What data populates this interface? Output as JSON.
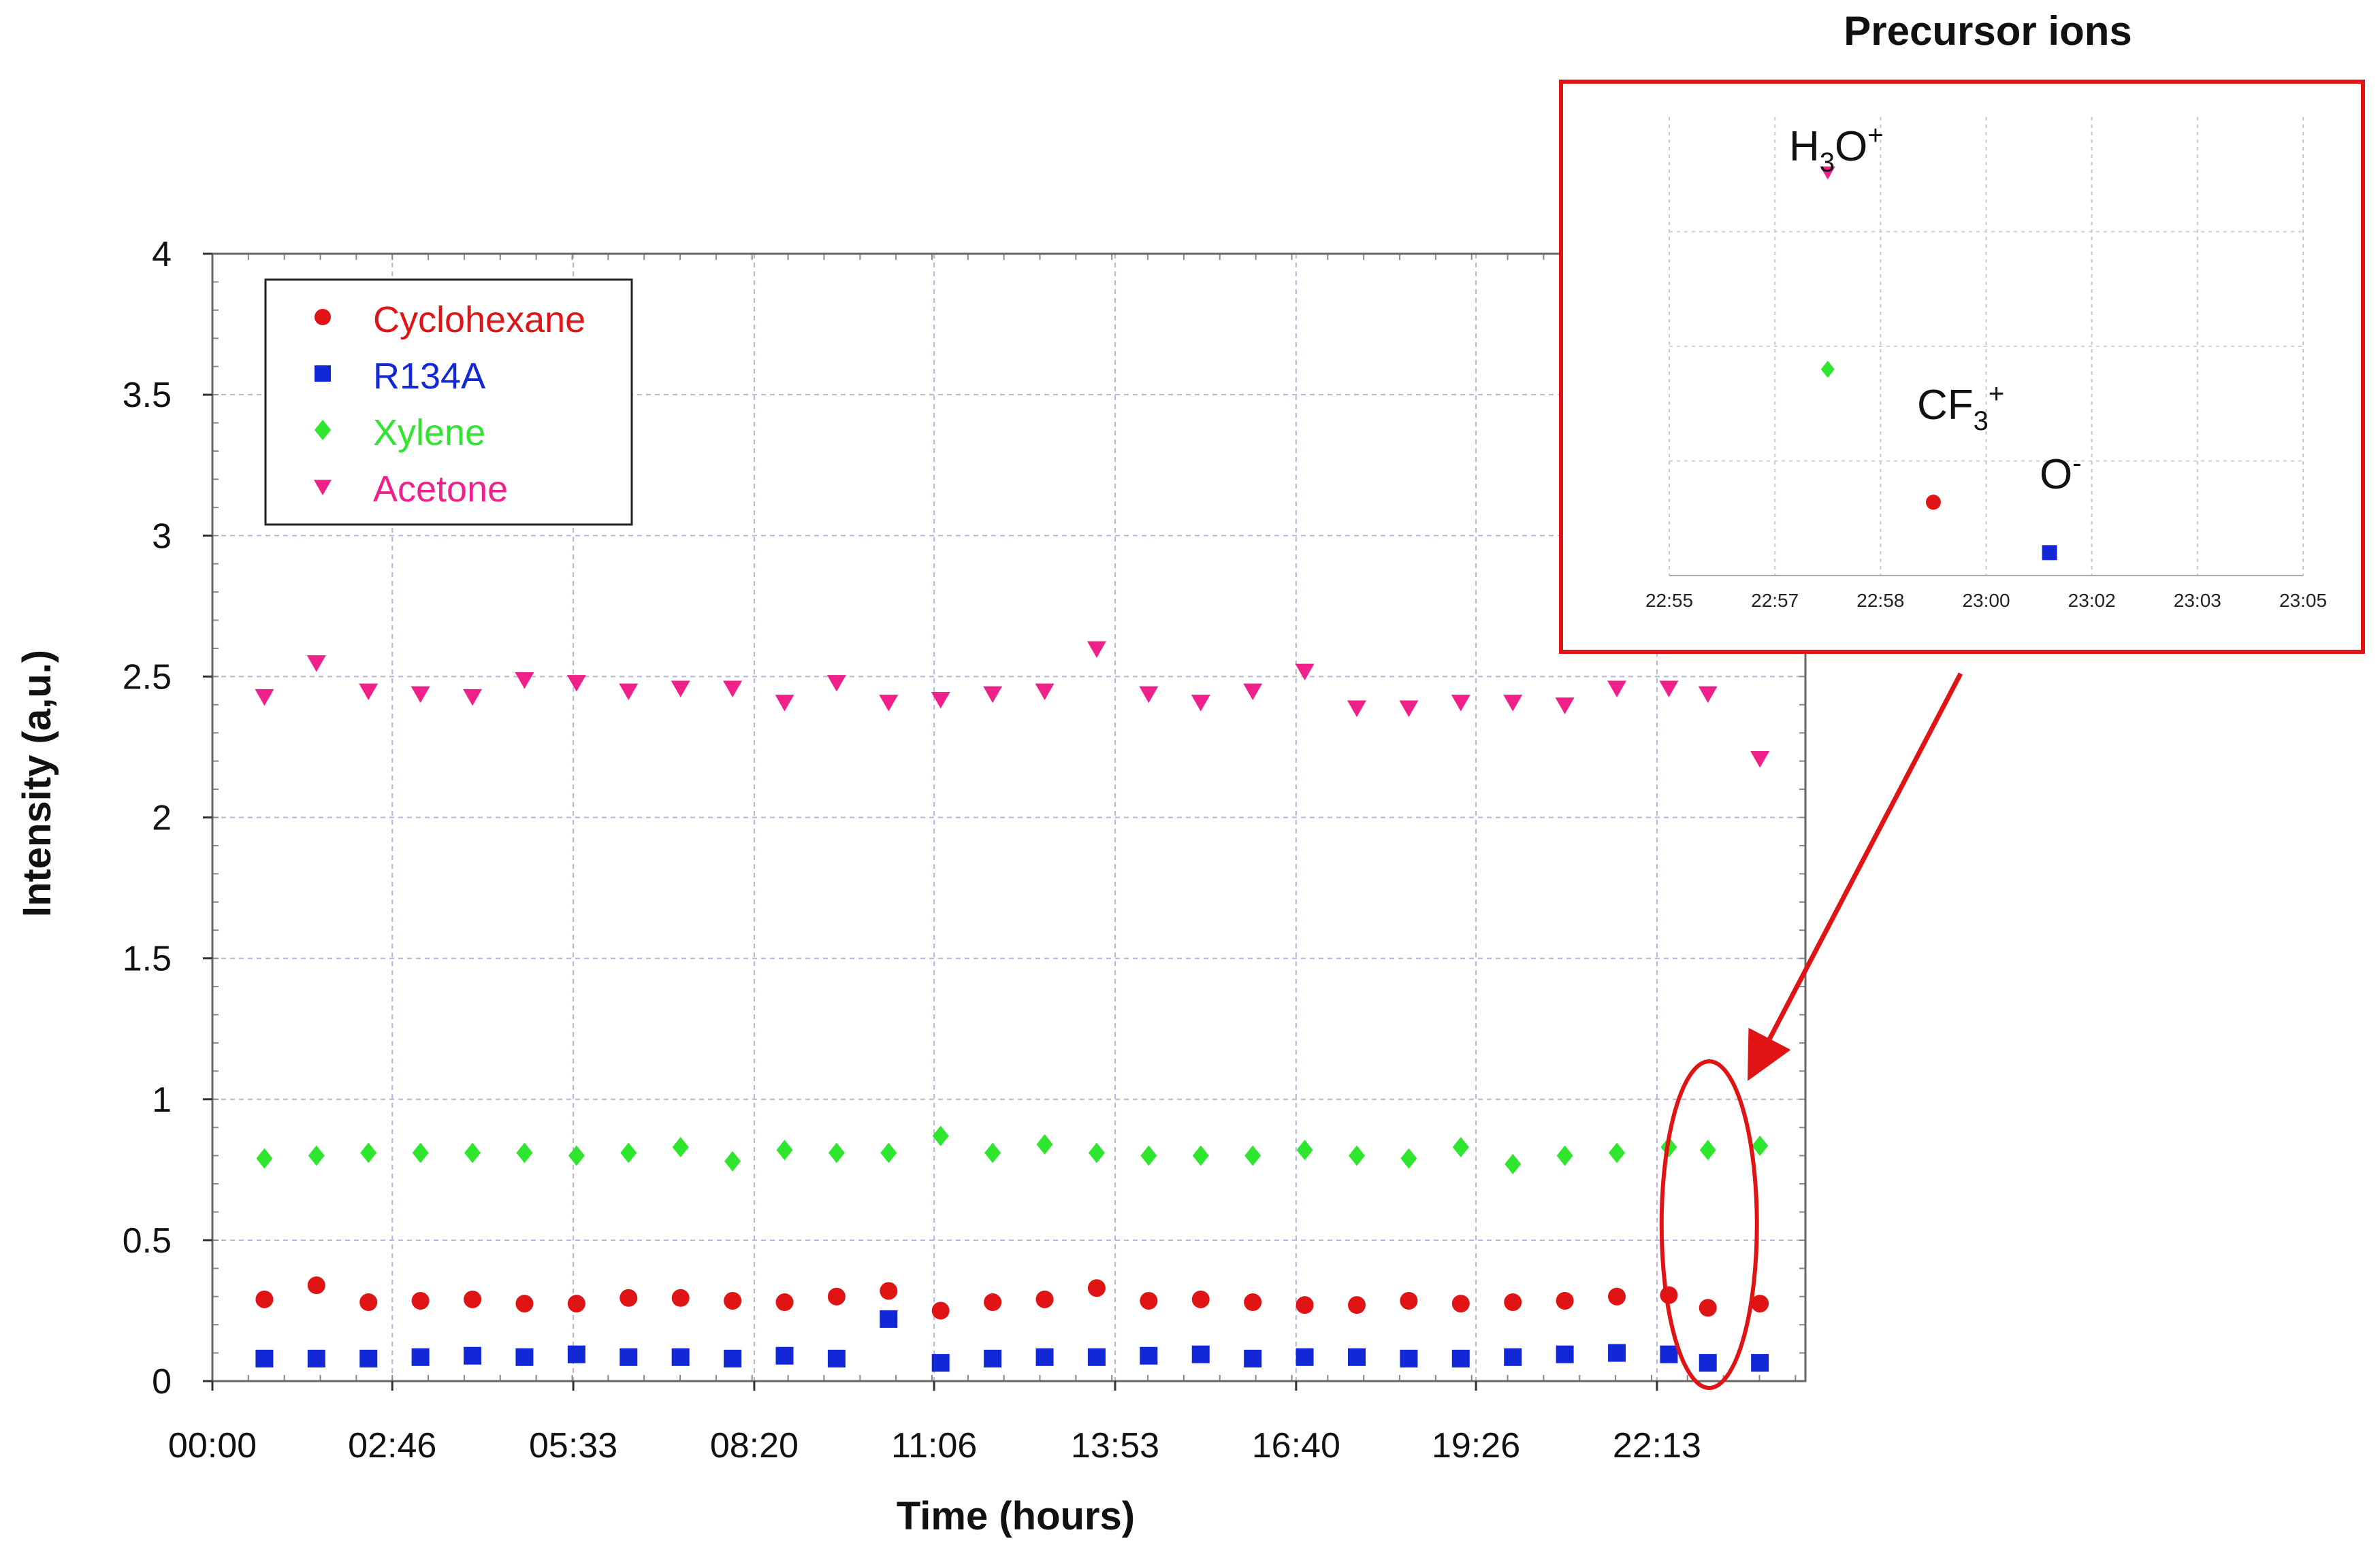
{
  "chart_data": {
    "type": "scatter",
    "xlabel": "Time (hours)",
    "ylabel": "Intensity (a,u.)",
    "xlim": [
      "00:00",
      "24:30"
    ],
    "ylim": [
      0,
      4
    ],
    "x_ticks": [
      "00:00",
      "02:46",
      "05:33",
      "08:20",
      "11:06",
      "13:53",
      "16:40",
      "19:26",
      "22:13"
    ],
    "y_ticks": [
      "0",
      "0.5",
      "1",
      "1.5",
      "2",
      "2.5",
      "3",
      "3.5",
      "4"
    ],
    "grid": true,
    "legend_position": "top-left",
    "x": [
      "00:48",
      "01:36",
      "02:24",
      "03:12",
      "04:00",
      "04:48",
      "05:36",
      "06:24",
      "07:12",
      "08:00",
      "08:48",
      "09:36",
      "10:24",
      "11:12",
      "12:00",
      "12:48",
      "13:36",
      "14:24",
      "15:12",
      "16:00",
      "16:48",
      "17:36",
      "18:24",
      "19:12",
      "20:00",
      "20:48",
      "21:36",
      "22:24",
      "23:00",
      "23:48"
    ],
    "series": [
      {
        "name": "Cyclohexane",
        "color": "#e01414",
        "marker": "circle",
        "values": [
          0.29,
          0.34,
          0.28,
          0.285,
          0.29,
          0.275,
          0.275,
          0.295,
          0.295,
          0.285,
          0.28,
          0.3,
          0.32,
          0.25,
          0.28,
          0.29,
          0.33,
          0.285,
          0.29,
          0.28,
          0.27,
          0.27,
          0.285,
          0.275,
          0.28,
          0.285,
          0.3,
          0.305,
          0.26,
          0.275
        ]
      },
      {
        "name": "R134A",
        "color": "#1228d6",
        "marker": "square",
        "values": [
          0.08,
          0.08,
          0.08,
          0.085,
          0.09,
          0.085,
          0.095,
          0.085,
          0.085,
          0.08,
          0.09,
          0.08,
          0.22,
          0.065,
          0.08,
          0.085,
          0.085,
          0.09,
          0.095,
          0.08,
          0.085,
          0.085,
          0.08,
          0.08,
          0.085,
          0.095,
          0.1,
          0.095,
          0.065,
          0.065
        ]
      },
      {
        "name": "Xylene",
        "color": "#2ee62e",
        "marker": "diamond",
        "values": [
          0.79,
          0.8,
          0.81,
          0.81,
          0.81,
          0.81,
          0.8,
          0.81,
          0.83,
          0.78,
          0.82,
          0.81,
          0.81,
          0.87,
          0.81,
          0.84,
          0.81,
          0.8,
          0.8,
          0.8,
          0.82,
          0.8,
          0.79,
          0.83,
          0.77,
          0.8,
          0.81,
          0.83,
          0.82,
          0.835
        ]
      },
      {
        "name": "Acetone",
        "color": "#f0208a",
        "marker": "triangle-down",
        "values": [
          2.43,
          2.55,
          2.45,
          2.44,
          2.43,
          2.49,
          2.48,
          2.45,
          2.46,
          2.46,
          2.41,
          2.48,
          2.41,
          2.42,
          2.44,
          2.45,
          2.6,
          2.44,
          2.41,
          2.45,
          2.52,
          2.39,
          2.39,
          2.41,
          2.41,
          2.4,
          2.46,
          2.46,
          2.44,
          2.21
        ]
      }
    ],
    "highlight": {
      "x": "23:00",
      "shape": "ellipse",
      "color": "#e01414"
    },
    "inset": {
      "title": "Precursor ions",
      "x_ticks": [
        "22:55",
        "22:57",
        "22:58",
        "23:00",
        "23:02",
        "23:03",
        "23:05"
      ],
      "points": [
        {
          "tick_pos": 1.5,
          "level": 0.88,
          "series": "Acetone"
        },
        {
          "tick_pos": 1.5,
          "level": 0.45,
          "series": "Xylene"
        },
        {
          "tick_pos": 2.5,
          "level": 0.16,
          "series": "Cyclohexane"
        },
        {
          "tick_pos": 3.6,
          "level": 0.05,
          "series": "R134A"
        }
      ],
      "labels": [
        {
          "main": "H",
          "sub": "3",
          "tail": "O",
          "sup": "+"
        },
        {
          "main": "CF",
          "sub": "3",
          "tail": "",
          "sup": "+"
        },
        {
          "main": "O",
          "sub": "",
          "tail": "",
          "sup": "-"
        }
      ]
    }
  }
}
